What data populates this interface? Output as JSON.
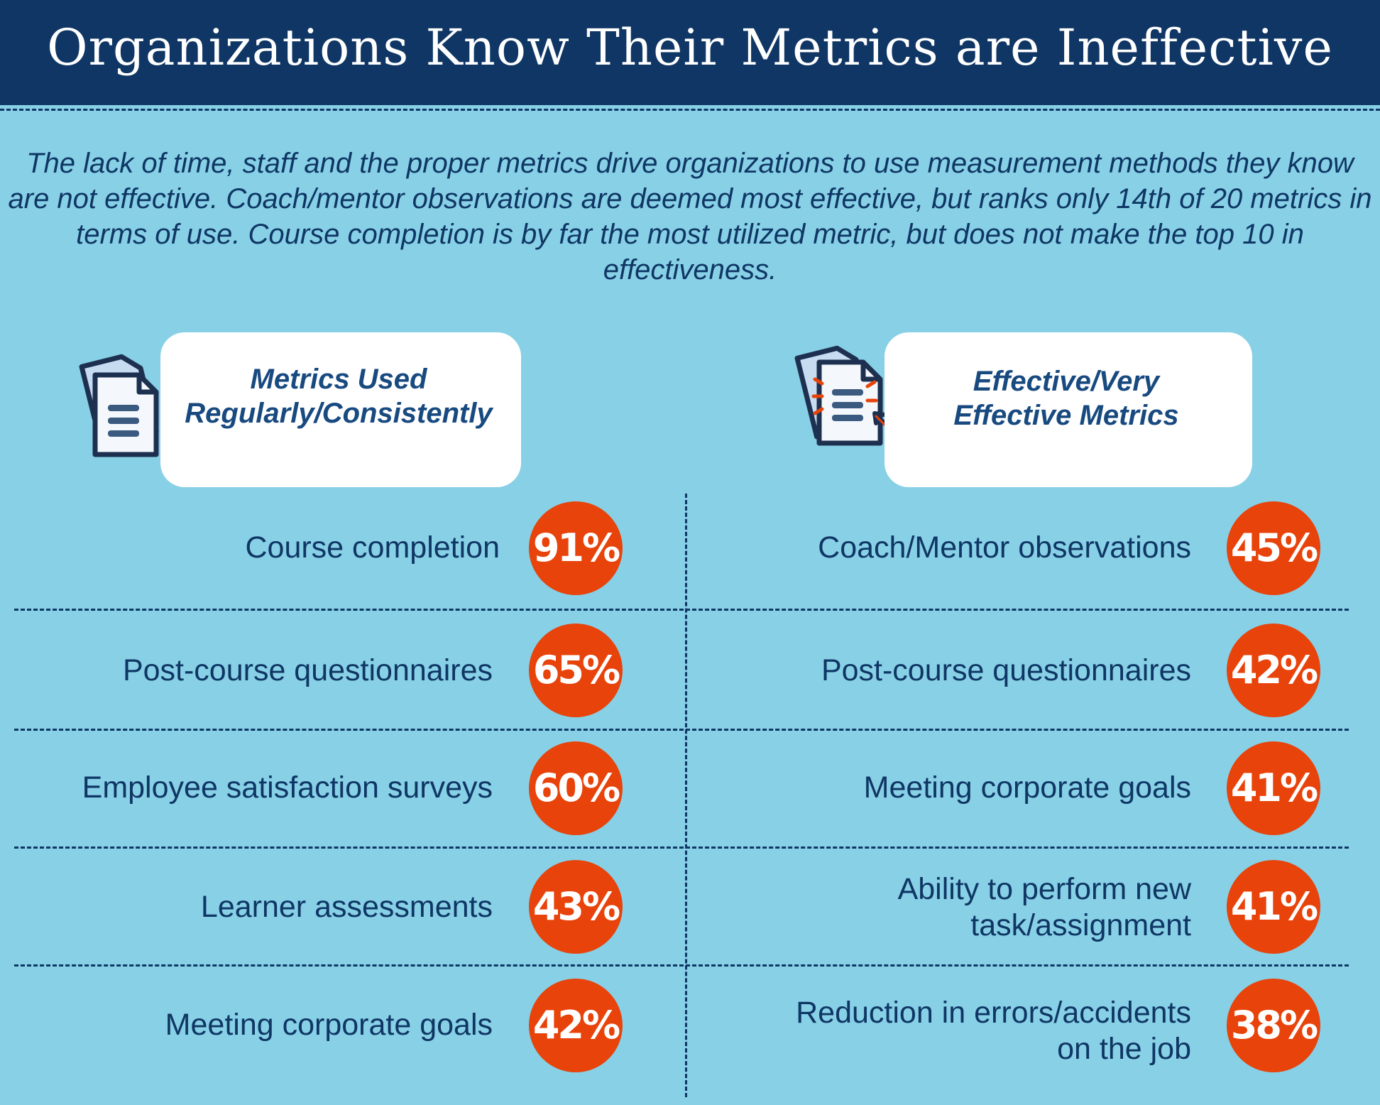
{
  "title": "Organizations Know Their Metrics are Ineffective",
  "intro": "The lack of time, staff and the proper metrics drive organizations to use measurement methods they know are not effective. Coach/mentor observations are deemed most effective, but ranks only 14th of 20 metrics in terms of use. Course completion is by far the most utilized metric, but does not make the top 10 in effectiveness.",
  "colors": {
    "header": "#0f3664",
    "background": "#87d0e6",
    "badge": "#e8430a",
    "text": "#0f3664"
  },
  "chart_data": [
    {
      "type": "table",
      "title": "Metrics Used Regularly/Consistently",
      "title_lines": [
        "Metrics Used",
        "Regularly/Consistently"
      ],
      "icon": "documents-icon",
      "items": [
        {
          "label": "Course completion",
          "value": 91,
          "display": "91%"
        },
        {
          "label": "Post-course questionnaires",
          "value": 65,
          "display": "65%"
        },
        {
          "label": "Employee satisfaction surveys",
          "value": 60,
          "display": "60%"
        },
        {
          "label": "Learner assessments",
          "value": 43,
          "display": "43%"
        },
        {
          "label": "Meeting corporate goals",
          "value": 42,
          "display": "42%"
        }
      ]
    },
    {
      "type": "table",
      "title": "Effective/Very Effective Metrics",
      "title_lines": [
        "Effective/Very",
        "Effective Metrics"
      ],
      "icon": "document-pointer-icon",
      "items": [
        {
          "label": "Coach/Mentor observations",
          "value": 45,
          "display": "45%"
        },
        {
          "label": "Post-course questionnaires",
          "value": 42,
          "display": "42%"
        },
        {
          "label": "Meeting corporate goals",
          "value": 41,
          "display": "41%"
        },
        {
          "label": "Ability to perform new task/assignment",
          "label_lines": [
            "Ability to perform new",
            "task/assignment"
          ],
          "value": 41,
          "display": "41%"
        },
        {
          "label": "Reduction in errors/accidents on the job",
          "label_lines": [
            "Reduction in errors/accidents",
            "on the job"
          ],
          "value": 38,
          "display": "38%"
        }
      ]
    }
  ]
}
